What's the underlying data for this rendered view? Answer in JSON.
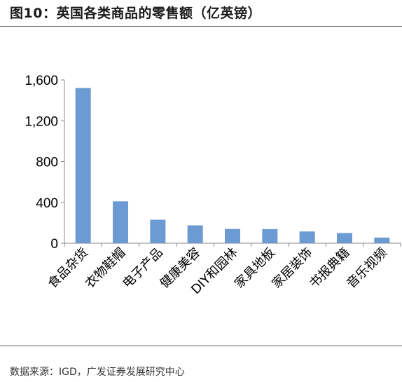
{
  "title": "图10：英国各类商品的零售额（亿英镑）",
  "source": "数据来源：IGD，广发证券发展研究中心",
  "chart_data": {
    "type": "bar",
    "title": "",
    "xlabel": "",
    "ylabel": "",
    "ylim": [
      0,
      1600
    ],
    "yticks": [
      0,
      400,
      800,
      1200,
      1600
    ],
    "ytick_labels": [
      "0",
      "400",
      "800",
      "1,200",
      "1,600"
    ],
    "categories": [
      "食品杂货",
      "衣物鞋帽",
      "电子产品",
      "健康美容",
      "DIY和园林",
      "家具地板",
      "家居装饰",
      "书报典籍",
      "音乐视频"
    ],
    "values": [
      1520,
      410,
      230,
      175,
      140,
      138,
      115,
      100,
      55
    ],
    "bar_color": "#6b9bd2",
    "grid": false,
    "legend": "none"
  }
}
